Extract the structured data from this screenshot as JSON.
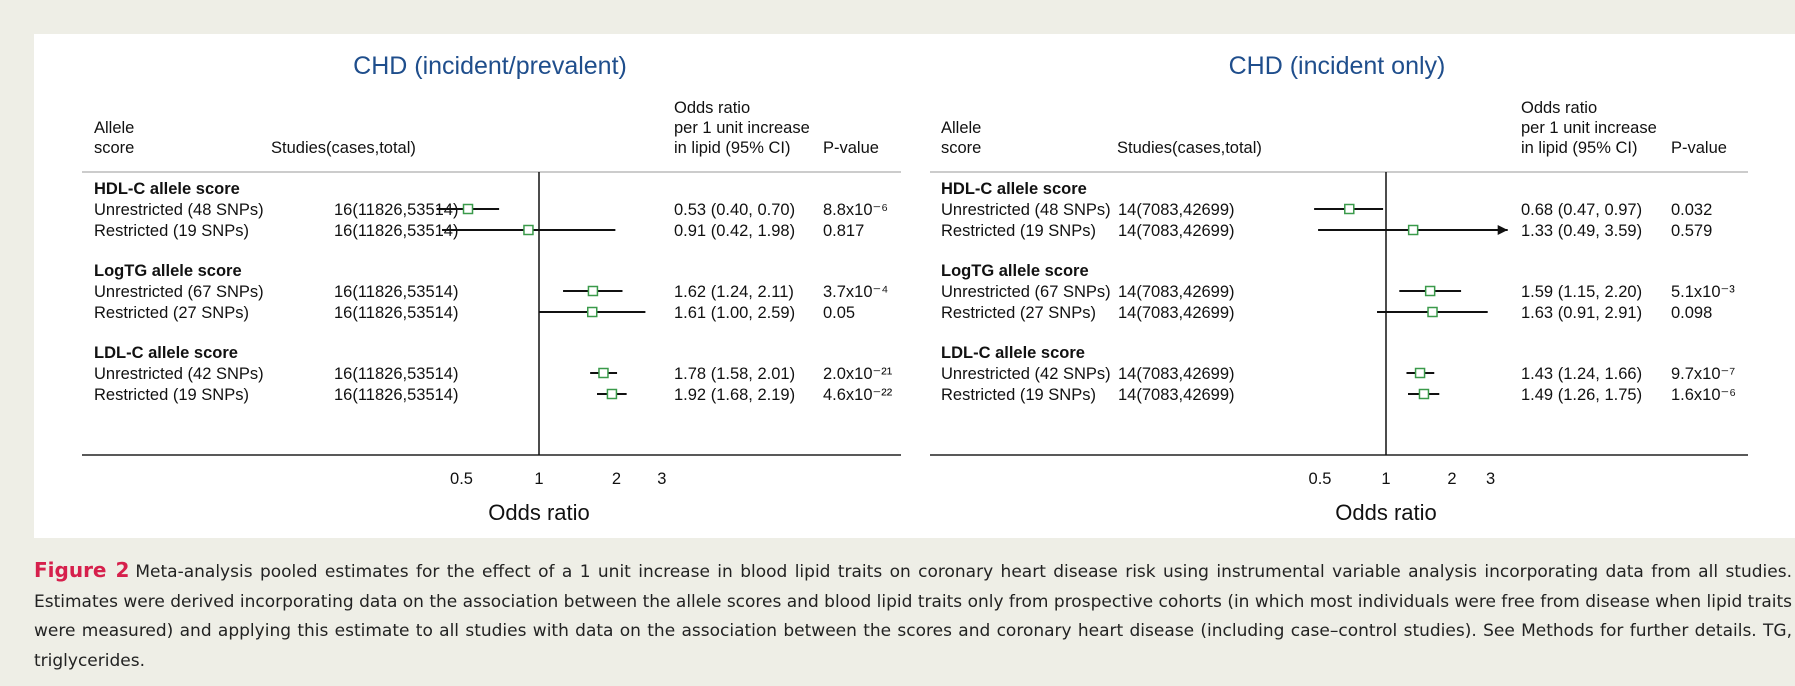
{
  "chart_data": [
    {
      "type": "forest",
      "title": "CHD (incident/prevalent)",
      "col_label": [
        "Allele",
        "score"
      ],
      "col_studies": "Studies(cases,total)",
      "col_or": [
        "Odds ratio",
        "per 1 unit increase",
        "in lipid (95% CI)"
      ],
      "col_p": "P-value",
      "x_label": "Odds ratio",
      "log_x": true,
      "xlim": [
        0.25,
        4
      ],
      "xticks": [
        0.5,
        1,
        2,
        3
      ],
      "ref_line": 1,
      "marker_color": "#3a9a4a",
      "groups": [
        {
          "name": "HDL-C allele score",
          "rows": [
            {
              "label": "Unrestricted (48 SNPs)",
              "studies": "16(11826,53514)",
              "value": 0.53,
              "lower": 0.4,
              "upper": 0.7,
              "value_label": "0.53 (0.40, 0.70)",
              "p_value": "8.8x10⁻⁶"
            },
            {
              "label": "Restricted (19 SNPs)",
              "studies": "16(11826,53514)",
              "value": 0.91,
              "lower": 0.42,
              "upper": 1.98,
              "value_label": "0.91 (0.42, 1.98)",
              "p_value": "0.817"
            }
          ]
        },
        {
          "name": "LogTG allele score",
          "rows": [
            {
              "label": "Unrestricted (67 SNPs)",
              "studies": "16(11826,53514)",
              "value": 1.62,
              "lower": 1.24,
              "upper": 2.11,
              "value_label": "1.62 (1.24, 2.11)",
              "p_value": "3.7x10⁻⁴"
            },
            {
              "label": "Restricted (27 SNPs)",
              "studies": "16(11826,53514)",
              "value": 1.61,
              "lower": 1.0,
              "upper": 2.59,
              "value_label": "1.61 (1.00, 2.59)",
              "p_value": "0.05"
            }
          ]
        },
        {
          "name": "LDL-C allele score",
          "rows": [
            {
              "label": "Unrestricted (42 SNPs)",
              "studies": "16(11826,53514)",
              "value": 1.78,
              "lower": 1.58,
              "upper": 2.01,
              "value_label": "1.78 (1.58, 2.01)",
              "p_value": "2.0x10⁻²¹"
            },
            {
              "label": "Restricted (19 SNPs)",
              "studies": "16(11826,53514)",
              "value": 1.92,
              "lower": 1.68,
              "upper": 2.19,
              "value_label": "1.92 (1.68, 2.19)",
              "p_value": "4.6x10⁻²²"
            }
          ]
        }
      ]
    },
    {
      "type": "forest",
      "title": "CHD (incident only)",
      "col_label": [
        "Allele",
        "score"
      ],
      "col_studies": "Studies(cases,total)",
      "col_or": [
        "Odds ratio",
        "per 1 unit increase",
        "in lipid (95% CI)"
      ],
      "col_p": "P-value",
      "x_label": "Odds ratio",
      "log_x": true,
      "xlim": [
        0.25,
        4
      ],
      "xticks": [
        0.5,
        1,
        2,
        3
      ],
      "ref_line": 1,
      "marker_color": "#3a9a4a",
      "groups": [
        {
          "name": "HDL-C allele score",
          "rows": [
            {
              "label": "Unrestricted (48 SNPs)",
              "studies": "14(7083,42699)",
              "value": 0.68,
              "lower": 0.47,
              "upper": 0.97,
              "value_label": "0.68 (0.47, 0.97)",
              "p_value": "0.032"
            },
            {
              "label": "Restricted (19 SNPs)",
              "studies": "14(7083,42699)",
              "value": 1.33,
              "lower": 0.49,
              "upper": 3.59,
              "value_label": "1.33 (0.49, 3.59)",
              "p_value": "0.579"
            }
          ]
        },
        {
          "name": "LogTG allele score",
          "rows": [
            {
              "label": "Unrestricted (67 SNPs)",
              "studies": "14(7083,42699)",
              "value": 1.59,
              "lower": 1.15,
              "upper": 2.2,
              "value_label": "1.59 (1.15, 2.20)",
              "p_value": "5.1x10⁻³"
            },
            {
              "label": "Restricted (27 SNPs)",
              "studies": "14(7083,42699)",
              "value": 1.63,
              "lower": 0.91,
              "upper": 2.91,
              "value_label": "1.63 (0.91, 2.91)",
              "p_value": "0.098"
            }
          ]
        },
        {
          "name": "LDL-C allele score",
          "rows": [
            {
              "label": "Unrestricted (42 SNPs)",
              "studies": "14(7083,42699)",
              "value": 1.43,
              "lower": 1.24,
              "upper": 1.66,
              "value_label": "1.43 (1.24, 1.66)",
              "p_value": "9.7x10⁻⁷"
            },
            {
              "label": "Restricted (19 SNPs)",
              "studies": "14(7083,42699)",
              "value": 1.49,
              "lower": 1.26,
              "upper": 1.75,
              "value_label": "1.49 (1.26, 1.75)",
              "p_value": "1.6x10⁻⁶"
            }
          ]
        }
      ]
    }
  ],
  "caption": {
    "label": "Figure 2",
    "text": "Meta-analysis pooled estimates for the effect of a 1 unit increase in blood lipid traits on coronary heart disease risk using instrumental variable analysis incorporating data from all studies. Estimates were derived incorporating data on the association between the allele scores and blood lipid traits only from prospective cohorts (in which most individuals were free from disease when lipid traits were measured) and applying this estimate to all studies with data on the association between the scores and coronary heart disease (including case–control studies). See Methods for further details. TG, triglycerides."
  }
}
